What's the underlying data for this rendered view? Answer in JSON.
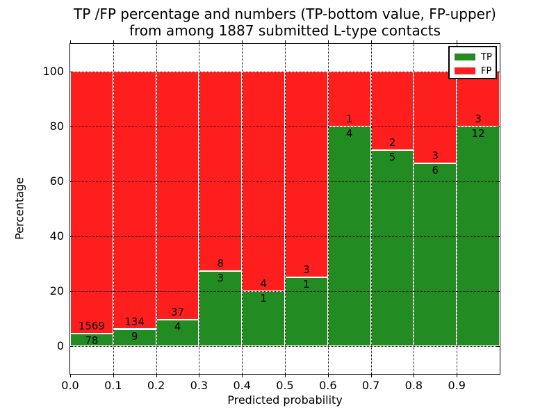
{
  "chart_data": {
    "type": "bar",
    "stacked": true,
    "title_lines": [
      "TP /FP percentage and numbers (TP-bottom value, FP-upper)",
      "from among 1887 submitted L-type contacts"
    ],
    "xlabel": "Predicted probability",
    "ylabel": "Percentage",
    "xlim": [
      0,
      1
    ],
    "ylim": [
      -10,
      110
    ],
    "xtick_labels": [
      "0.0",
      "0.1",
      "0.2",
      "0.3",
      "0.4",
      "0.5",
      "0.6",
      "0.7",
      "0.8",
      "0.9"
    ],
    "ytick_values": [
      0,
      20,
      40,
      60,
      80,
      100
    ],
    "grid_style": "dotted",
    "total_contacts": 1887,
    "categories": [
      "0.0-0.1",
      "0.1-0.2",
      "0.2-0.3",
      "0.3-0.4",
      "0.4-0.5",
      "0.5-0.6",
      "0.6-0.7",
      "0.7-0.8",
      "0.8-0.9",
      "0.9-1.0"
    ],
    "series": [
      {
        "name": "TP",
        "color": "#228B22",
        "counts": [
          78,
          9,
          4,
          3,
          1,
          1,
          4,
          5,
          6,
          12
        ]
      },
      {
        "name": "FP",
        "color": "#FF1E1E",
        "counts": [
          1569,
          134,
          37,
          8,
          4,
          3,
          1,
          2,
          3,
          3
        ]
      }
    ],
    "legend": {
      "position": "upper right",
      "labels": [
        "TP",
        "FP"
      ]
    },
    "bar_edge_color": "#FFFFFF"
  }
}
